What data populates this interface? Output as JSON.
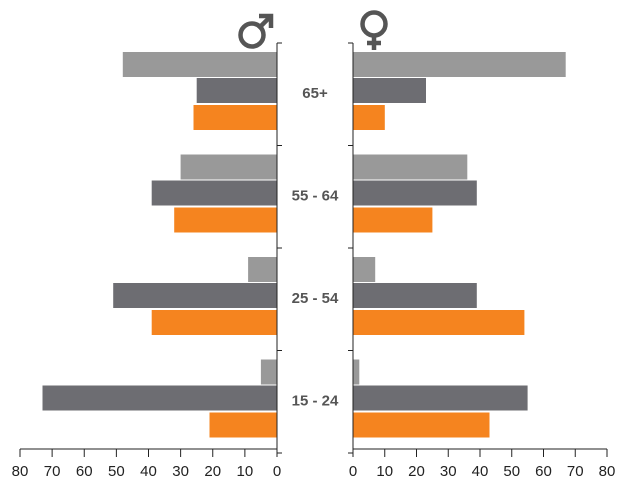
{
  "chart_data": {
    "type": "bar",
    "orientation": "horizontal",
    "layout": "population-pyramid",
    "title": "",
    "categories": [
      "65+",
      "55 - 64",
      "25 - 54",
      "15 - 24"
    ],
    "panels": [
      {
        "name": "male",
        "symbol": "♂",
        "direction": "left",
        "xlim": [
          0,
          80
        ],
        "ticks": [
          80,
          70,
          60,
          50,
          40,
          30,
          20,
          10,
          0
        ],
        "series": [
          {
            "color": "#999999",
            "values": [
              48,
              30,
              9,
              5
            ]
          },
          {
            "color": "#6d6d72",
            "values": [
              25,
              39,
              51,
              73
            ]
          },
          {
            "color": "#f5841f",
            "values": [
              26,
              32,
              39,
              21
            ]
          }
        ]
      },
      {
        "name": "female",
        "symbol": "♀",
        "direction": "right",
        "xlim": [
          0,
          80
        ],
        "ticks": [
          0,
          10,
          20,
          30,
          40,
          50,
          60,
          70,
          80
        ],
        "series": [
          {
            "color": "#999999",
            "values": [
              67,
              36,
              7,
              2
            ]
          },
          {
            "color": "#6d6d72",
            "values": [
              23,
              39,
              39,
              55
            ]
          },
          {
            "color": "#f5841f",
            "values": [
              10,
              25,
              54,
              43
            ]
          }
        ]
      }
    ],
    "colors": {
      "axis": "#222222",
      "label": "#555555",
      "symbol": "#555555"
    },
    "grid": false,
    "legend": "none"
  }
}
